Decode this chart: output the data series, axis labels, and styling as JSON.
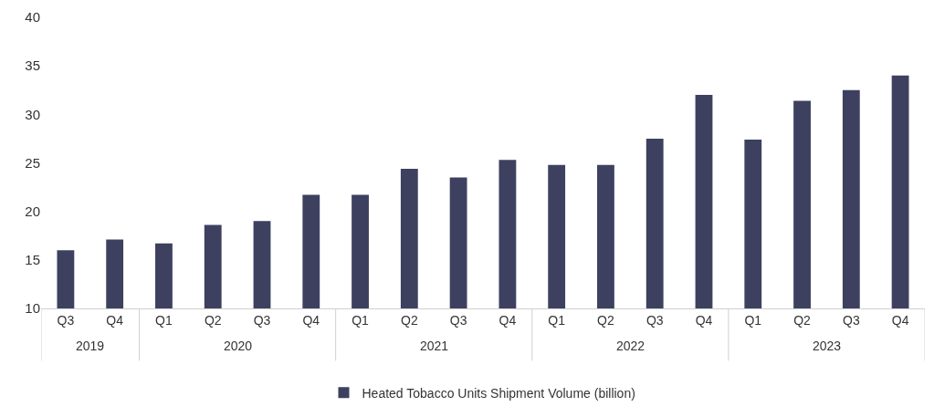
{
  "chart_data": {
    "type": "bar",
    "categories": [
      "Q3",
      "Q4",
      "Q1",
      "Q2",
      "Q3",
      "Q4",
      "Q1",
      "Q2",
      "Q3",
      "Q4",
      "Q1",
      "Q2",
      "Q3",
      "Q4",
      "Q1",
      "Q2",
      "Q3",
      "Q4"
    ],
    "series": [
      {
        "name": "Heated Tobacco Units Shipment Volume (billion)",
        "color": "#3d415f",
        "values": [
          16.0,
          17.1,
          16.7,
          18.6,
          19.0,
          21.7,
          21.7,
          24.4,
          23.5,
          25.3,
          24.8,
          24.8,
          27.5,
          32.0,
          27.4,
          31.4,
          32.5,
          34.0
        ]
      }
    ],
    "annotations": [
      "2019",
      "2020",
      "2021",
      "2022",
      "2023"
    ],
    "ylim": [
      10,
      40
    ],
    "yticks": [
      10,
      15,
      20,
      25,
      30,
      35,
      40
    ],
    "legend": "bottom"
  }
}
